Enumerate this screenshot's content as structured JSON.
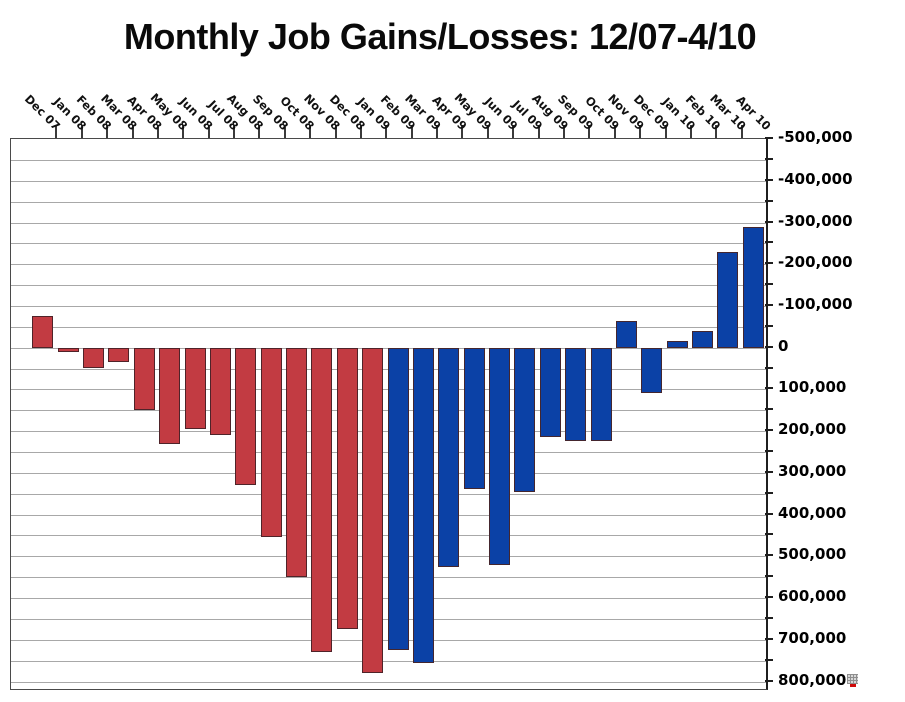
{
  "title": "Monthly Job Gains/Losses: 12/07-4/10",
  "icons": {
    "mini_spreadsheet": "grid-with-red-mark"
  },
  "chart_data": {
    "type": "bar",
    "title": "Monthly Job Gains/Losses: 12/07-4/10",
    "unit": "jobs",
    "orientation_note": "y-axis is inverted: job losses plotted downward as positive axis numbers, job gains upward as negative axis numbers",
    "legend": false,
    "gridlines": true,
    "x_axis": {
      "side": "top",
      "label_rotation_deg": 45
    },
    "y_axis": {
      "side": "right",
      "top_value": -500000,
      "bottom_value": 800000,
      "major_step": 100000,
      "minor_step": 50000,
      "tick_labels": [
        "-500,000",
        "-400,000",
        "-300,000",
        "-200,000",
        "-100,000",
        "0",
        "100,000",
        "200,000",
        "300,000",
        "400,000",
        "500,000",
        "600,000",
        "700,000",
        "800,000"
      ]
    },
    "categories": [
      "Dec 07",
      "Jan 08",
      "Feb 08",
      "Mar 08",
      "Apr 08",
      "May 08",
      "Jun 08",
      "Jul 08",
      "Aug 08",
      "Sep 08",
      "Oct 08",
      "Nov 08",
      "Dec 08",
      "Jan 09",
      "Feb 09",
      "Mar 09",
      "Apr 09",
      "May 09",
      "Jun 09",
      "Jul 09",
      "Aug 09",
      "Sep 09",
      "Oct 09",
      "Nov 09",
      "Dec 09",
      "Jan 10",
      "Feb 10",
      "Mar 10",
      "Apr 10"
    ],
    "values": [
      75000,
      -10000,
      -50000,
      -35000,
      -150000,
      -230000,
      -195000,
      -210000,
      -330000,
      -455000,
      -550000,
      -730000,
      -675000,
      -780000,
      -725000,
      -755000,
      -525000,
      -340000,
      -520000,
      -345000,
      -215000,
      -225000,
      -225000,
      65000,
      -110000,
      15000,
      40000,
      230000,
      290000
    ],
    "groups": [
      "red",
      "red",
      "red",
      "red",
      "red",
      "red",
      "red",
      "red",
      "red",
      "red",
      "red",
      "red",
      "red",
      "red",
      "blue",
      "blue",
      "blue",
      "blue",
      "blue",
      "blue",
      "blue",
      "blue",
      "blue",
      "blue",
      "blue",
      "blue",
      "blue",
      "blue",
      "blue"
    ],
    "group_colors": {
      "red": "#c23b42",
      "blue": "#0b41a6"
    }
  }
}
